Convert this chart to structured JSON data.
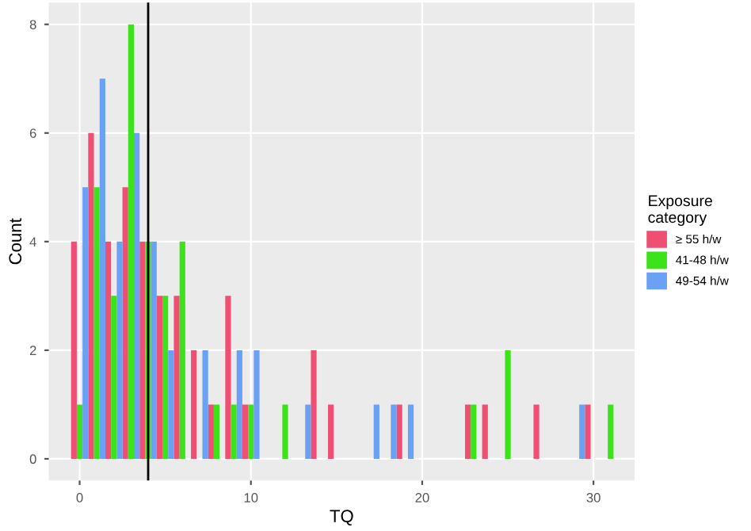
{
  "chart_data": {
    "type": "histogram",
    "xlabel": "TQ",
    "ylabel": "Count",
    "legend_title": "Exposure\ncategory",
    "bins": [
      -0.5,
      0.5,
      1.5,
      2.5,
      3.5,
      4.5,
      5.5,
      6.5,
      7.5,
      8.5,
      9.5,
      10.5,
      11.5,
      12.5,
      13.5,
      14.5,
      15.5,
      16.5,
      17.5,
      18.5,
      19.5,
      20.5,
      21.5,
      22.5,
      23.5,
      24.5,
      25.5,
      26.5,
      27.5,
      28.5,
      29.5,
      30.5,
      31.5
    ],
    "series": [
      {
        "name": "≥ 55 h/w",
        "color": "#ee4f73",
        "values": [
          4,
          6,
          4,
          5,
          4,
          3,
          3,
          2,
          1,
          3,
          1,
          0,
          0,
          0,
          2,
          1,
          0,
          0,
          0,
          1,
          0,
          0,
          0,
          1,
          1,
          0,
          0,
          1,
          0,
          0,
          1,
          0
        ]
      },
      {
        "name": "41-48 h/w",
        "color": "#3ce31a",
        "values": [
          1,
          5,
          3,
          8,
          4,
          3,
          4,
          0,
          1,
          1,
          1,
          0,
          1,
          0,
          0,
          0,
          0,
          0,
          0,
          0,
          0,
          0,
          0,
          1,
          0,
          2,
          0,
          0,
          0,
          0,
          0,
          1
        ]
      },
      {
        "name": "49-54 h/w",
        "color": "#6aa1f5",
        "values": [
          5,
          7,
          4,
          6,
          4,
          2,
          0,
          2,
          0,
          2,
          2,
          0,
          0,
          1,
          0,
          0,
          0,
          1,
          1,
          1,
          0,
          0,
          0,
          0,
          0,
          0,
          0,
          0,
          0,
          1,
          0,
          0
        ]
      }
    ],
    "xlim": [
      -1.8,
      32.4
    ],
    "ylim": [
      -0.4,
      8.4
    ],
    "xticks": [
      0,
      10,
      20,
      30
    ],
    "yticks": [
      0,
      2,
      4,
      6,
      8
    ],
    "ref_lines": [
      {
        "axis": "x",
        "value": 4,
        "color": "#000000"
      }
    ],
    "grid": true,
    "legend": "right"
  }
}
